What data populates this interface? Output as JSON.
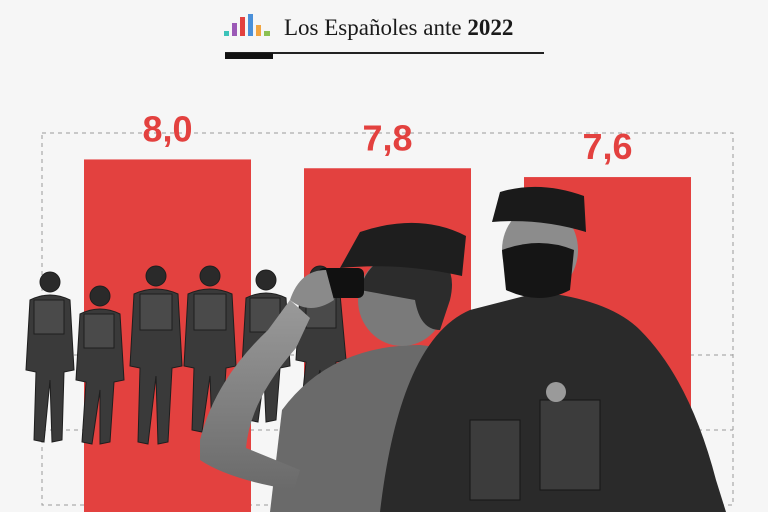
{
  "header": {
    "title_prefix": "Los Españoles ante",
    "title_year": "2022",
    "logo_colors": [
      "#3cc3b9",
      "#9b59b6",
      "#e3413f",
      "#4a90d9",
      "#f2a541",
      "#8cc152"
    ]
  },
  "chart_data": {
    "type": "bar",
    "categories": [
      "",
      "",
      ""
    ],
    "values": [
      8.0,
      7.8,
      7.6
    ],
    "value_labels": [
      "8,0",
      "7,8",
      "7,6"
    ],
    "ylim": [
      0,
      8.6
    ],
    "grid": true,
    "bar_color": "#e3413f",
    "illustrations": [
      "soldiers-group",
      "guardia-civil-binoculars-officer",
      "masked-police-officer"
    ]
  }
}
